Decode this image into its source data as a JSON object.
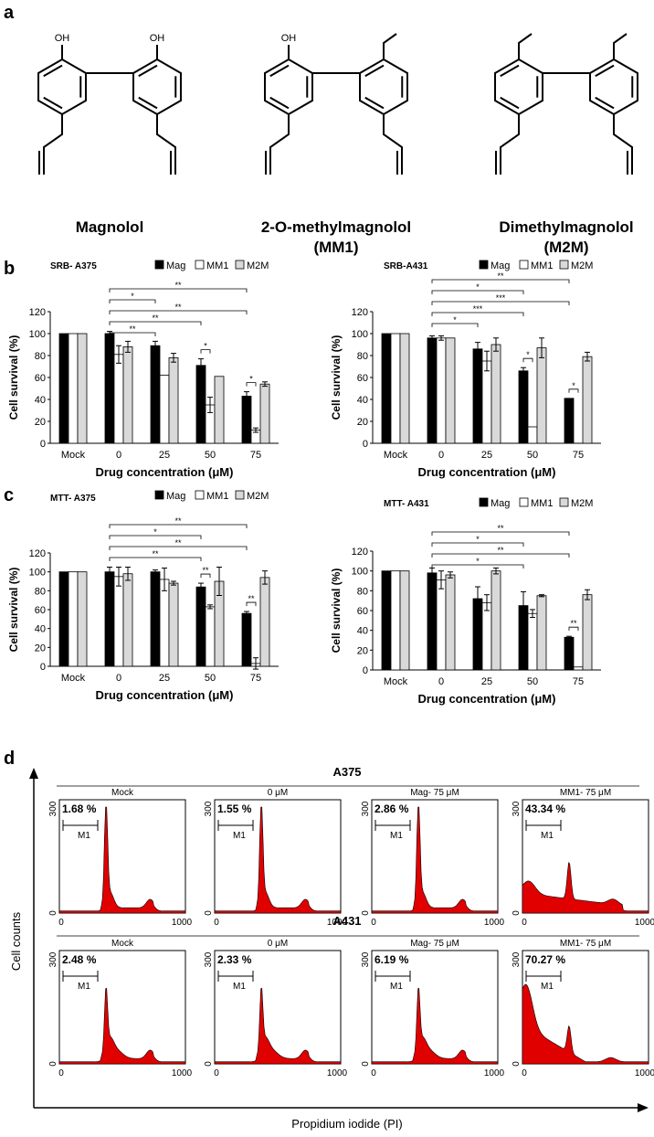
{
  "panel_labels": {
    "a": "a",
    "b": "b",
    "c": "c",
    "d": "d"
  },
  "compounds": [
    {
      "name": "Magnolol",
      "abbr": ""
    },
    {
      "name": "2-O-methylmagnolol",
      "abbr": "(MM1)"
    },
    {
      "name": "Dimethylmagnolol",
      "abbr": "(M2M)"
    }
  ],
  "structure_labels": {
    "oh": "OH"
  },
  "legend": {
    "mag": "Mag",
    "mm1": "MM1",
    "m2m": "M2M"
  },
  "colors": {
    "mag": "#000000",
    "mm1": "#ffffff",
    "m2m": "#d9d9d9",
    "histogram": "#e00000"
  },
  "chart_data": [
    {
      "type": "bar",
      "title": "SRB- A375",
      "categories": [
        "Mock",
        "0",
        "25",
        "50",
        "75"
      ],
      "xlabel": "Drug  concentration (μM)",
      "ylabel": "Cell survival (%)",
      "ylim": [
        0,
        120
      ],
      "yticks": [
        0,
        20,
        40,
        60,
        80,
        100,
        120
      ],
      "series": [
        {
          "name": "Mag",
          "values": [
            100,
            100,
            89,
            71,
            43
          ],
          "errors": [
            0,
            2,
            4,
            6,
            4
          ]
        },
        {
          "name": "MM1",
          "values": [
            100,
            81,
            62,
            35,
            12
          ],
          "errors": [
            0,
            8,
            0,
            7,
            2
          ]
        },
        {
          "name": "M2M",
          "values": [
            100,
            88,
            78,
            61,
            54
          ],
          "errors": [
            0,
            5,
            4,
            0,
            2
          ]
        }
      ],
      "significance": [
        "**",
        "*",
        "**",
        "**",
        "**",
        "*",
        "*"
      ]
    },
    {
      "type": "bar",
      "title": "SRB-A431",
      "categories": [
        "Mock",
        "0",
        "25",
        "50",
        "75"
      ],
      "xlabel": "Drug  concentration (μM)",
      "ylabel": "Cell survival (%)",
      "ylim": [
        0,
        120
      ],
      "yticks": [
        0,
        20,
        40,
        60,
        80,
        100,
        120
      ],
      "series": [
        {
          "name": "Mag",
          "values": [
            100,
            96,
            86,
            66,
            41
          ],
          "errors": [
            0,
            2,
            6,
            3,
            0
          ]
        },
        {
          "name": "MM1",
          "values": [
            100,
            96,
            75,
            15,
            0
          ],
          "errors": [
            0,
            2,
            9,
            0,
            0
          ]
        },
        {
          "name": "M2M",
          "values": [
            100,
            96,
            90,
            87,
            79
          ],
          "errors": [
            0,
            0,
            6,
            9,
            4
          ]
        }
      ],
      "significance": [
        "**",
        "*",
        "***",
        "***",
        "*",
        "*",
        "*"
      ]
    },
    {
      "type": "bar",
      "title": "MTT- A375",
      "categories": [
        "Mock",
        "0",
        "25",
        "50",
        "75"
      ],
      "xlabel": "Drug concentration (μM)",
      "ylabel": "Cell survival (%)",
      "ylim": [
        0,
        120
      ],
      "yticks": [
        0,
        20,
        40,
        60,
        80,
        100,
        120
      ],
      "series": [
        {
          "name": "Mag",
          "values": [
            100,
            100,
            100,
            84,
            56
          ],
          "errors": [
            0,
            5,
            2,
            4,
            2
          ]
        },
        {
          "name": "MM1",
          "values": [
            100,
            95,
            92,
            63,
            3
          ],
          "errors": [
            0,
            10,
            12,
            2,
            6
          ]
        },
        {
          "name": "M2M",
          "values": [
            100,
            98,
            88,
            90,
            94
          ],
          "errors": [
            0,
            7,
            2,
            15,
            7
          ]
        }
      ],
      "significance": [
        "**",
        "*",
        "**",
        "**",
        "**",
        "**"
      ]
    },
    {
      "type": "bar",
      "title": "MTT- A431",
      "categories": [
        "Mock",
        "0",
        "25",
        "50",
        "75"
      ],
      "xlabel": "Drug concentration (μM)",
      "ylabel": "Cell survival (%)",
      "ylim": [
        0,
        120
      ],
      "yticks": [
        0,
        20,
        40,
        60,
        80,
        100,
        120
      ],
      "series": [
        {
          "name": "Mag",
          "values": [
            100,
            98,
            72,
            65,
            33
          ],
          "errors": [
            0,
            5,
            12,
            14,
            1
          ]
        },
        {
          "name": "MM1",
          "values": [
            100,
            91,
            68,
            57,
            3
          ],
          "errors": [
            0,
            9,
            8,
            4,
            0
          ]
        },
        {
          "name": "M2M",
          "values": [
            100,
            96,
            100,
            75,
            76
          ],
          "errors": [
            0,
            3,
            3,
            1,
            5
          ]
        }
      ],
      "significance": [
        "**",
        "*",
        "**",
        "*",
        "**"
      ]
    }
  ],
  "flow": {
    "y_axis_label": "Cell counts",
    "x_axis_label": "Propidium iodide (PI)",
    "gate_label": "M1",
    "xticks": [
      "0",
      "1000"
    ],
    "yticks": [
      "0",
      "300"
    ],
    "rows": [
      {
        "cell_line": "A375",
        "panels": [
          {
            "name": "Mock",
            "percent": "1.68 %",
            "profile": "g1"
          },
          {
            "name": "0 μM",
            "percent": "1.55 %",
            "profile": "g1"
          },
          {
            "name": "Mag- 75 μM",
            "percent": "2.86 %",
            "profile": "g1"
          },
          {
            "name": "MM1- 75 μM",
            "percent": "43.34 %",
            "profile": "subg1"
          }
        ]
      },
      {
        "cell_line": "A431",
        "panels": [
          {
            "name": "Mock",
            "percent": "2.48 %",
            "profile": "g1b"
          },
          {
            "name": "0 μM",
            "percent": "2.33 %",
            "profile": "g1b"
          },
          {
            "name": "Mag- 75 μM",
            "percent": "6.19 %",
            "profile": "g1b"
          },
          {
            "name": "MM1- 75 μM",
            "percent": "70.27 %",
            "profile": "subg1b"
          }
        ]
      }
    ]
  }
}
